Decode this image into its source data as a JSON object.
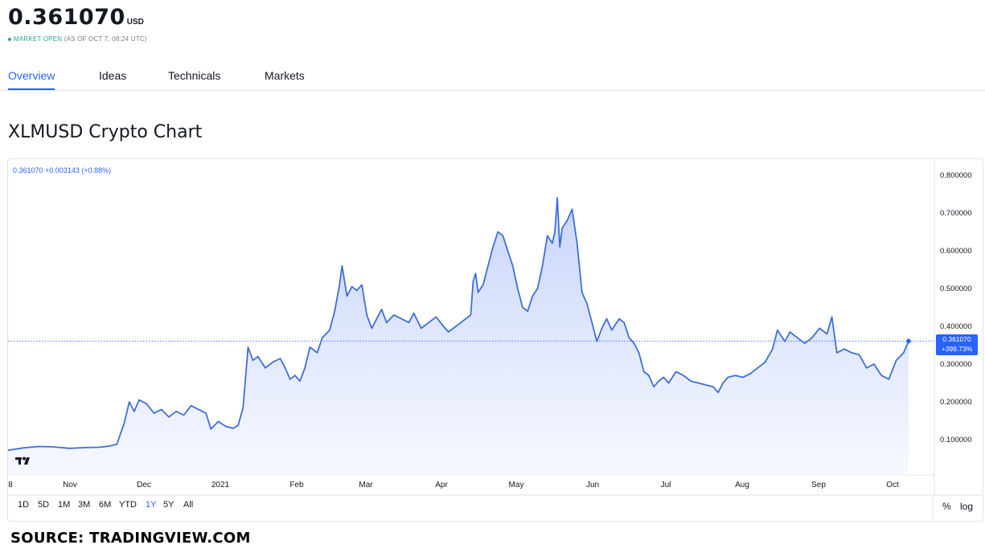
{
  "header": {
    "price": "0.361070",
    "currency": "USD",
    "market_status": "MARKET OPEN",
    "as_of": "(AS OF OCT 7, 08:24 UTC)"
  },
  "tabs": [
    {
      "label": "Overview",
      "active": true
    },
    {
      "label": "Ideas",
      "active": false
    },
    {
      "label": "Technicals",
      "active": false
    },
    {
      "label": "Markets",
      "active": false
    }
  ],
  "section_title": "XLMUSD Crypto Chart",
  "legend_readout": "0.361070 +0.003143 (+0.88%)",
  "last_label": {
    "price": "0.361070",
    "change": "+399.73%"
  },
  "range_buttons": [
    {
      "label": "1D",
      "active": false
    },
    {
      "label": "5D",
      "active": false
    },
    {
      "label": "1M",
      "active": false
    },
    {
      "label": "3M",
      "active": false
    },
    {
      "label": "6M",
      "active": false
    },
    {
      "label": "YTD",
      "active": false
    },
    {
      "label": "1Y",
      "active": true
    },
    {
      "label": "5Y",
      "active": false
    },
    {
      "label": "All",
      "active": false
    }
  ],
  "scale_buttons": {
    "percent": "%",
    "log": "log"
  },
  "source": "SOURCE: TRADINGVIEW.COM",
  "colors": {
    "accent": "#2962ff",
    "line": "#3e6fd8",
    "fill_top": "#c9d6fb",
    "fill_bottom": "#f7f9ff",
    "market_open": "#26a69a"
  },
  "icons": {
    "logo": "tradingview-logo-icon"
  },
  "chart_data": {
    "type": "area",
    "x_tick_labels": [
      "8",
      "Nov",
      "Dec",
      "2021",
      "Feb",
      "Mar",
      "Apr",
      "May",
      "Jun",
      "Jul",
      "Aug",
      "Sep",
      "Oct"
    ],
    "y_tick_labels": [
      "0.100000",
      "0.200000",
      "0.300000",
      "0.400000",
      "0.500000",
      "0.600000",
      "0.700000",
      "0.800000"
    ],
    "ylim": [
      0.0,
      0.8
    ],
    "last_value": 0.36107,
    "series": [
      {
        "points": [
          [
            "2020-10-08",
            0.072
          ],
          [
            "2020-10-14",
            0.078
          ],
          [
            "2020-10-20",
            0.082
          ],
          [
            "2020-10-26",
            0.081
          ],
          [
            "2020-11-02",
            0.077
          ],
          [
            "2020-11-08",
            0.079
          ],
          [
            "2020-11-14",
            0.08
          ],
          [
            "2020-11-18",
            0.083
          ],
          [
            "2020-11-21",
            0.088
          ],
          [
            "2020-11-24",
            0.145
          ],
          [
            "2020-11-26",
            0.2
          ],
          [
            "2020-11-28",
            0.175
          ],
          [
            "2020-11-30",
            0.205
          ],
          [
            "2020-12-03",
            0.195
          ],
          [
            "2020-12-06",
            0.17
          ],
          [
            "2020-12-09",
            0.18
          ],
          [
            "2020-12-12",
            0.16
          ],
          [
            "2020-12-15",
            0.175
          ],
          [
            "2020-12-18",
            0.165
          ],
          [
            "2020-12-21",
            0.19
          ],
          [
            "2020-12-24",
            0.18
          ],
          [
            "2020-12-27",
            0.17
          ],
          [
            "2020-12-29",
            0.128
          ],
          [
            "2021-01-01",
            0.148
          ],
          [
            "2021-01-04",
            0.135
          ],
          [
            "2021-01-07",
            0.13
          ],
          [
            "2021-01-09",
            0.138
          ],
          [
            "2021-01-11",
            0.185
          ],
          [
            "2021-01-13",
            0.345
          ],
          [
            "2021-01-15",
            0.31
          ],
          [
            "2021-01-17",
            0.32
          ],
          [
            "2021-01-20",
            0.29
          ],
          [
            "2021-01-23",
            0.305
          ],
          [
            "2021-01-26",
            0.315
          ],
          [
            "2021-01-28",
            0.29
          ],
          [
            "2021-01-30",
            0.26
          ],
          [
            "2021-02-01",
            0.27
          ],
          [
            "2021-02-03",
            0.255
          ],
          [
            "2021-02-05",
            0.29
          ],
          [
            "2021-02-07",
            0.345
          ],
          [
            "2021-02-10",
            0.33
          ],
          [
            "2021-02-12",
            0.37
          ],
          [
            "2021-02-15",
            0.39
          ],
          [
            "2021-02-17",
            0.44
          ],
          [
            "2021-02-19",
            0.51
          ],
          [
            "2021-02-20",
            0.56
          ],
          [
            "2021-02-22",
            0.48
          ],
          [
            "2021-02-24",
            0.505
          ],
          [
            "2021-02-26",
            0.495
          ],
          [
            "2021-02-28",
            0.51
          ],
          [
            "2021-03-02",
            0.43
          ],
          [
            "2021-03-04",
            0.395
          ],
          [
            "2021-03-06",
            0.42
          ],
          [
            "2021-03-08",
            0.445
          ],
          [
            "2021-03-10",
            0.41
          ],
          [
            "2021-03-13",
            0.43
          ],
          [
            "2021-03-16",
            0.42
          ],
          [
            "2021-03-19",
            0.41
          ],
          [
            "2021-03-21",
            0.435
          ],
          [
            "2021-03-24",
            0.395
          ],
          [
            "2021-03-27",
            0.41
          ],
          [
            "2021-03-30",
            0.425
          ],
          [
            "2021-04-02",
            0.4
          ],
          [
            "2021-04-04",
            0.385
          ],
          [
            "2021-04-06",
            0.395
          ],
          [
            "2021-04-09",
            0.41
          ],
          [
            "2021-04-11",
            0.42
          ],
          [
            "2021-04-13",
            0.43
          ],
          [
            "2021-04-14",
            0.52
          ],
          [
            "2021-04-15",
            0.54
          ],
          [
            "2021-04-16",
            0.49
          ],
          [
            "2021-04-18",
            0.51
          ],
          [
            "2021-04-20",
            0.56
          ],
          [
            "2021-04-22",
            0.61
          ],
          [
            "2021-04-24",
            0.65
          ],
          [
            "2021-04-26",
            0.64
          ],
          [
            "2021-04-28",
            0.6
          ],
          [
            "2021-04-30",
            0.56
          ],
          [
            "2021-05-02",
            0.5
          ],
          [
            "2021-05-04",
            0.45
          ],
          [
            "2021-05-06",
            0.44
          ],
          [
            "2021-05-08",
            0.48
          ],
          [
            "2021-05-10",
            0.5
          ],
          [
            "2021-05-12",
            0.56
          ],
          [
            "2021-05-14",
            0.64
          ],
          [
            "2021-05-16",
            0.62
          ],
          [
            "2021-05-17",
            0.65
          ],
          [
            "2021-05-18",
            0.74
          ],
          [
            "2021-05-19",
            0.61
          ],
          [
            "2021-05-20",
            0.66
          ],
          [
            "2021-05-22",
            0.68
          ],
          [
            "2021-05-24",
            0.71
          ],
          [
            "2021-05-26",
            0.62
          ],
          [
            "2021-05-28",
            0.49
          ],
          [
            "2021-05-30",
            0.46
          ],
          [
            "2021-06-01",
            0.41
          ],
          [
            "2021-06-03",
            0.36
          ],
          [
            "2021-06-05",
            0.395
          ],
          [
            "2021-06-07",
            0.42
          ],
          [
            "2021-06-09",
            0.39
          ],
          [
            "2021-06-12",
            0.42
          ],
          [
            "2021-06-14",
            0.41
          ],
          [
            "2021-06-16",
            0.37
          ],
          [
            "2021-06-18",
            0.355
          ],
          [
            "2021-06-20",
            0.33
          ],
          [
            "2021-06-22",
            0.28
          ],
          [
            "2021-06-24",
            0.27
          ],
          [
            "2021-06-26",
            0.24
          ],
          [
            "2021-06-28",
            0.255
          ],
          [
            "2021-06-30",
            0.265
          ],
          [
            "2021-07-02",
            0.25
          ],
          [
            "2021-07-05",
            0.28
          ],
          [
            "2021-07-08",
            0.27
          ],
          [
            "2021-07-11",
            0.255
          ],
          [
            "2021-07-14",
            0.25
          ],
          [
            "2021-07-17",
            0.245
          ],
          [
            "2021-07-20",
            0.24
          ],
          [
            "2021-07-22",
            0.225
          ],
          [
            "2021-07-24",
            0.25
          ],
          [
            "2021-07-26",
            0.265
          ],
          [
            "2021-07-29",
            0.27
          ],
          [
            "2021-08-01",
            0.265
          ],
          [
            "2021-08-04",
            0.275
          ],
          [
            "2021-08-07",
            0.29
          ],
          [
            "2021-08-10",
            0.305
          ],
          [
            "2021-08-13",
            0.34
          ],
          [
            "2021-08-15",
            0.39
          ],
          [
            "2021-08-18",
            0.36
          ],
          [
            "2021-08-20",
            0.385
          ],
          [
            "2021-08-23",
            0.37
          ],
          [
            "2021-08-26",
            0.355
          ],
          [
            "2021-08-29",
            0.37
          ],
          [
            "2021-09-01",
            0.395
          ],
          [
            "2021-09-04",
            0.38
          ],
          [
            "2021-09-06",
            0.425
          ],
          [
            "2021-09-08",
            0.33
          ],
          [
            "2021-09-11",
            0.34
          ],
          [
            "2021-09-14",
            0.33
          ],
          [
            "2021-09-17",
            0.325
          ],
          [
            "2021-09-20",
            0.29
          ],
          [
            "2021-09-23",
            0.3
          ],
          [
            "2021-09-26",
            0.27
          ],
          [
            "2021-09-29",
            0.26
          ],
          [
            "2021-10-02",
            0.31
          ],
          [
            "2021-10-05",
            0.33
          ],
          [
            "2021-10-07",
            0.361
          ]
        ]
      }
    ],
    "grid": false,
    "crosshair_line_value": 0.36107
  }
}
